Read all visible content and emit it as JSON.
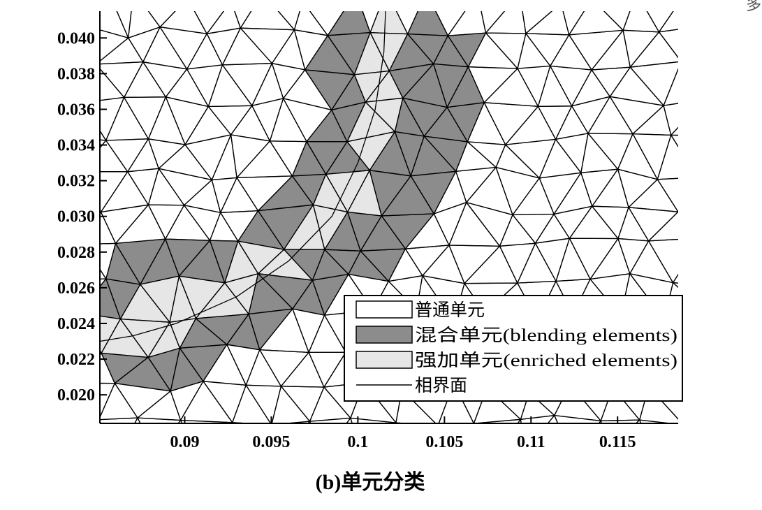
{
  "figure": {
    "corner_glyph": "多",
    "caption": "(b)单元分类",
    "colors": {
      "regular": "#ffffff",
      "blending": "#8c8c8c",
      "enriched": "#e6e6e6",
      "line": "#000000"
    }
  },
  "chart_data": {
    "type": "mesh",
    "title": "",
    "xlabel": "",
    "ylabel": "",
    "xlim": [
      0.0851,
      0.1185
    ],
    "ylim": [
      0.0184,
      0.0415
    ],
    "x_ticks": [
      0.09,
      0.095,
      0.1,
      0.105,
      0.11,
      0.115
    ],
    "x_tick_labels": [
      "0.09",
      "0.095",
      "0.1",
      "0.105",
      "0.11",
      "0.115"
    ],
    "y_ticks": [
      0.02,
      0.022,
      0.024,
      0.026,
      0.028,
      0.03,
      0.032,
      0.034,
      0.036,
      0.038,
      0.04
    ],
    "y_tick_labels": [
      "0.020",
      "0.022",
      "0.024",
      "0.026",
      "0.028",
      "0.030",
      "0.032",
      "0.034",
      "0.036",
      "0.038",
      "0.040"
    ],
    "legend": {
      "placement": "lower-right",
      "entries": [
        {
          "label": "普通单元",
          "kind": "regular"
        },
        {
          "label": "混合单元(blending elements)",
          "kind": "blending"
        },
        {
          "label": "强加单元(enriched elements)",
          "kind": "enriched"
        },
        {
          "label": "相界面",
          "kind": "interface"
        }
      ]
    },
    "blending_region": [
      [
        0.0981,
        0.0415
      ],
      [
        0.1066,
        0.0415
      ],
      [
        0.1063,
        0.0404
      ],
      [
        0.108,
        0.0367
      ],
      [
        0.1056,
        0.0349
      ],
      [
        0.1057,
        0.0322
      ],
      [
        0.1036,
        0.0306
      ],
      [
        0.1024,
        0.0278
      ],
      [
        0.0976,
        0.0246
      ],
      [
        0.095,
        0.0232
      ],
      [
        0.0918,
        0.022
      ],
      [
        0.0922,
        0.0208
      ],
      [
        0.0893,
        0.0199
      ],
      [
        0.0875,
        0.02
      ],
      [
        0.0851,
        0.021
      ],
      [
        0.0851,
        0.027
      ],
      [
        0.0869,
        0.0284
      ],
      [
        0.0895,
        0.0291
      ],
      [
        0.0928,
        0.0286
      ],
      [
        0.0955,
        0.0306
      ],
      [
        0.0981,
        0.035
      ],
      [
        0.0981,
        0.0415
      ]
    ],
    "enriched_region": [
      [
        0.1006,
        0.0415
      ],
      [
        0.1028,
        0.0415
      ],
      [
        0.1028,
        0.0395
      ],
      [
        0.1022,
        0.0352
      ],
      [
        0.1018,
        0.0323
      ],
      [
        0.1007,
        0.0303
      ],
      [
        0.098,
        0.0282
      ],
      [
        0.095,
        0.0265
      ],
      [
        0.0928,
        0.0243
      ],
      [
        0.0894,
        0.0228
      ],
      [
        0.087,
        0.0225
      ],
      [
        0.0851,
        0.0222
      ],
      [
        0.0851,
        0.0243
      ],
      [
        0.0872,
        0.025
      ],
      [
        0.0904,
        0.0265
      ],
      [
        0.0934,
        0.028
      ],
      [
        0.0966,
        0.0298
      ],
      [
        0.0991,
        0.0318
      ],
      [
        0.1,
        0.0345
      ],
      [
        0.1006,
        0.0375
      ],
      [
        0.1006,
        0.0415
      ]
    ],
    "interface_curve": [
      [
        0.1016,
        0.0415
      ],
      [
        0.1015,
        0.0392
      ],
      [
        0.101,
        0.036
      ],
      [
        0.1,
        0.033
      ],
      [
        0.0985,
        0.03
      ],
      [
        0.096,
        0.0275
      ],
      [
        0.093,
        0.0255
      ],
      [
        0.0895,
        0.024
      ],
      [
        0.087,
        0.0233
      ],
      [
        0.0851,
        0.023
      ]
    ]
  }
}
